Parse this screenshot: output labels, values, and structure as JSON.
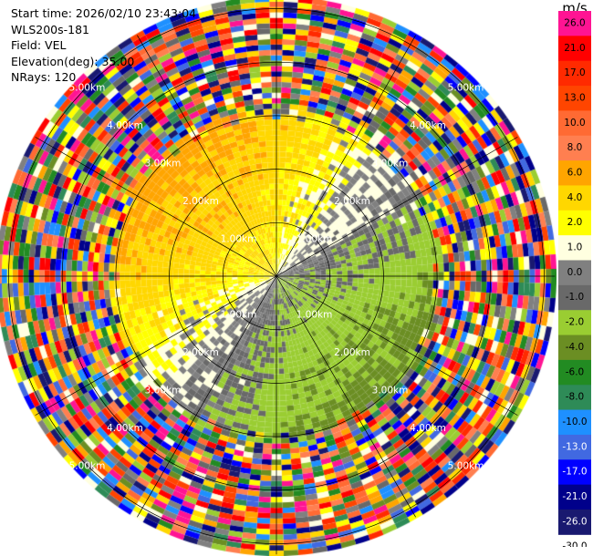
{
  "header": {
    "lines": [
      "Start time: 2026/02/10 23:43:04",
      "WLS200s-181",
      "Field: VEL",
      "Elevation(deg): 35.00",
      "NRays: 120"
    ]
  },
  "colorbar": {
    "unit": "m/s",
    "levels": [
      {
        "label": "26.0",
        "color": "#ff1493"
      },
      {
        "label": "21.0",
        "color": "#ff0000"
      },
      {
        "label": "17.0",
        "color": "#ff2a00"
      },
      {
        "label": "13.0",
        "color": "#ff4500"
      },
      {
        "label": "10.0",
        "color": "#ff6a33"
      },
      {
        "label": "8.0",
        "color": "#ff7f50"
      },
      {
        "label": "6.0",
        "color": "#ffa500"
      },
      {
        "label": "4.0",
        "color": "#ffd700"
      },
      {
        "label": "2.0",
        "color": "#ffff00"
      },
      {
        "label": "1.0",
        "color": "#ffffe0"
      },
      {
        "label": "0.0",
        "color": "#808080"
      },
      {
        "label": "-1.0",
        "color": "#696969"
      },
      {
        "label": "-2.0",
        "color": "#9acd32"
      },
      {
        "label": "-4.0",
        "color": "#6b8e23"
      },
      {
        "label": "-6.0",
        "color": "#228b22"
      },
      {
        "label": "-8.0",
        "color": "#2e8b57"
      },
      {
        "label": "-10.0",
        "color": "#1e90ff"
      },
      {
        "label": "-13.0",
        "color": "#4169e1"
      },
      {
        "label": "-17.0",
        "color": "#0000ff"
      },
      {
        "label": "-21.0",
        "color": "#00008b"
      },
      {
        "label": "-26.0",
        "color": "#191970"
      },
      {
        "label": "-30.0",
        "color": ""
      }
    ]
  },
  "chart_data": {
    "type": "heatmap",
    "projection": "polar-ppi",
    "field": "VEL",
    "n_rays": 120,
    "rings_km": [
      1.0,
      2.0,
      3.0,
      4.0,
      5.0
    ],
    "ring_labels": [
      "1.00km",
      "2.00km",
      "3.00km",
      "4.00km",
      "5.00km"
    ],
    "max_range_km": 5.2,
    "spokes_deg": [
      0,
      30,
      60,
      90,
      120,
      150,
      180,
      210,
      240,
      270,
      300,
      330
    ],
    "gate_km": 0.1,
    "velocity_field": {
      "inner_range_km": 3.0,
      "outer_range_km": 5.2,
      "description_pattern": "dipole: positive radial velocity (yellow, ~2-4 m/s) north and west, negative (green, ~-2 to -6 m/s) south and east; noise (random colors) beyond ~3 km",
      "positive_direction_deg": 315,
      "peak_abs_velocity_ms": 5.0
    }
  }
}
